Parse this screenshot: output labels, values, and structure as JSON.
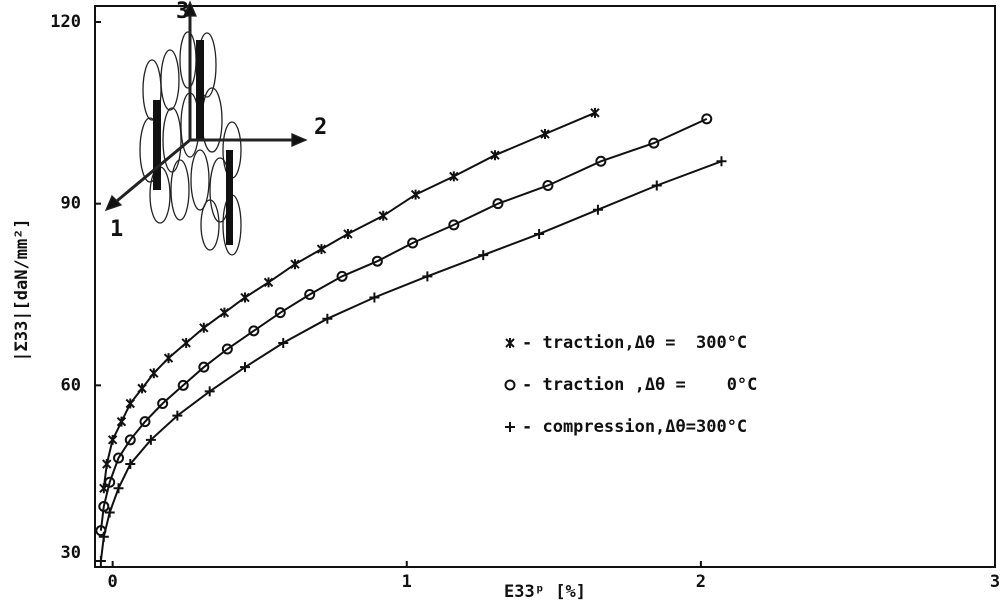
{
  "chart_data": {
    "type": "line",
    "xlabel": "E33ᵖ [%]",
    "ylabel": "|Σ33|[daN/mm²]",
    "xlim": [
      -0.06,
      3
    ],
    "ylim": [
      30,
      120
    ],
    "xticks": [
      0,
      1,
      2,
      3
    ],
    "yticks": [
      30,
      60,
      90,
      120
    ],
    "legend": "right",
    "inset_labels": [
      "3",
      "2",
      "1"
    ],
    "series": [
      {
        "name": "traction,Δθ =  300°C",
        "marker": "x",
        "color": "#111111",
        "x": [
          -0.03,
          -0.02,
          0,
          0.03,
          0.06,
          0.1,
          0.14,
          0.19,
          0.25,
          0.31,
          0.38,
          0.45,
          0.53,
          0.62,
          0.71,
          0.8,
          0.92,
          1.03,
          1.16,
          1.3,
          1.47,
          1.64
        ],
        "values": [
          43,
          47,
          51,
          54,
          57,
          59.5,
          62,
          64.5,
          67,
          69.5,
          72,
          74.5,
          77,
          80,
          82.5,
          85,
          88,
          91.5,
          94.5,
          98,
          101.5,
          105
        ]
      },
      {
        "name": "traction ,Δθ =    0°C",
        "marker": "o",
        "color": "#111111",
        "x": [
          -0.04,
          -0.03,
          -0.01,
          0.02,
          0.06,
          0.11,
          0.17,
          0.24,
          0.31,
          0.39,
          0.48,
          0.57,
          0.67,
          0.78,
          0.9,
          1.02,
          1.16,
          1.31,
          1.48,
          1.66,
          1.84,
          2.02
        ],
        "values": [
          36,
          40,
          44,
          48,
          51,
          54,
          57,
          60,
          63,
          66,
          69,
          72,
          75,
          78,
          80.5,
          83.5,
          86.5,
          90,
          93,
          97,
          100,
          104
        ]
      },
      {
        "name": "compression,Δθ=300°C",
        "marker": "+",
        "color": "#111111",
        "x": [
          -0.04,
          -0.03,
          -0.01,
          0.02,
          0.06,
          0.13,
          0.22,
          0.33,
          0.45,
          0.58,
          0.73,
          0.89,
          1.07,
          1.26,
          1.45,
          1.65,
          1.85,
          2.07
        ],
        "values": [
          31,
          35,
          39,
          43,
          47,
          51,
          55,
          59,
          63,
          67,
          71,
          74.5,
          78,
          81.5,
          85,
          89,
          93,
          97
        ]
      }
    ]
  }
}
